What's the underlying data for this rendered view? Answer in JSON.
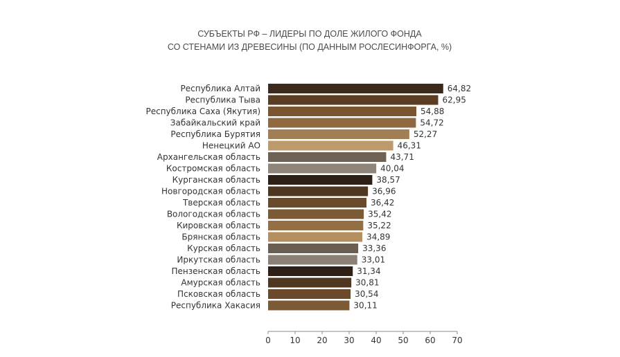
{
  "chart_data": {
    "type": "bar",
    "orientation": "horizontal",
    "title_lines": [
      "СУБЪЕКТЫ РФ – ЛИДЕРЫ ПО ДОЛЕ ЖИЛОГО ФОНДА",
      "СО СТЕНАМИ ИЗ ДРЕВЕСИНЫ (ПО ДАННЫМ РОСЛЕСИНФОРГА, %)"
    ],
    "categories": [
      "Республика Алтай",
      "Республика Тыва",
      "Республика Саха (Якутия)",
      "Забайкальский край",
      "Республика Бурятия",
      "Ненецкий АО",
      "Архангельская область",
      "Костромская область",
      "Курганская область",
      "Новгородская область",
      "Тверская область",
      "Вологодская область",
      "Кировская область",
      "Брянская область",
      "Курская область",
      "Иркутская область",
      "Пензенская область",
      "Амурская область",
      "Псковская область",
      "Республика Хакасия"
    ],
    "values": [
      64.82,
      62.95,
      54.88,
      54.72,
      52.27,
      46.31,
      43.71,
      40.04,
      38.57,
      36.96,
      36.42,
      35.42,
      35.22,
      34.89,
      33.36,
      33.01,
      31.34,
      30.81,
      30.54,
      30.11
    ],
    "value_labels": [
      "64,82",
      "62,95",
      "54,88",
      "54,72",
      "52,27",
      "46,31",
      "43,71",
      "40,04",
      "38,57",
      "36,96",
      "36,42",
      "35,42",
      "35,22",
      "34,89",
      "33,36",
      "33,01",
      "31,34",
      "30,81",
      "30,54",
      "30,11"
    ],
    "bar_colors": [
      "#3b2a1c",
      "#5a3d22",
      "#7a5530",
      "#8f6a40",
      "#a17e53",
      "#bd9a6c",
      "#6f6254",
      "#8f8579",
      "#2e2016",
      "#4f3620",
      "#6a4a2a",
      "#7c5a34",
      "#946f44",
      "#b48f5f",
      "#6a5e52",
      "#8a8075",
      "#2e2016",
      "#4f3620",
      "#6a4a2a",
      "#7c5a34"
    ],
    "xlim": [
      0,
      70
    ],
    "xticks": [
      0,
      10,
      20,
      30,
      40,
      50,
      60,
      70
    ],
    "xtick_labels": [
      "0",
      "10",
      "20",
      "30",
      "40",
      "50",
      "60",
      "70"
    ],
    "xlabel": "",
    "ylabel": "",
    "grid": false,
    "legend": "none"
  }
}
